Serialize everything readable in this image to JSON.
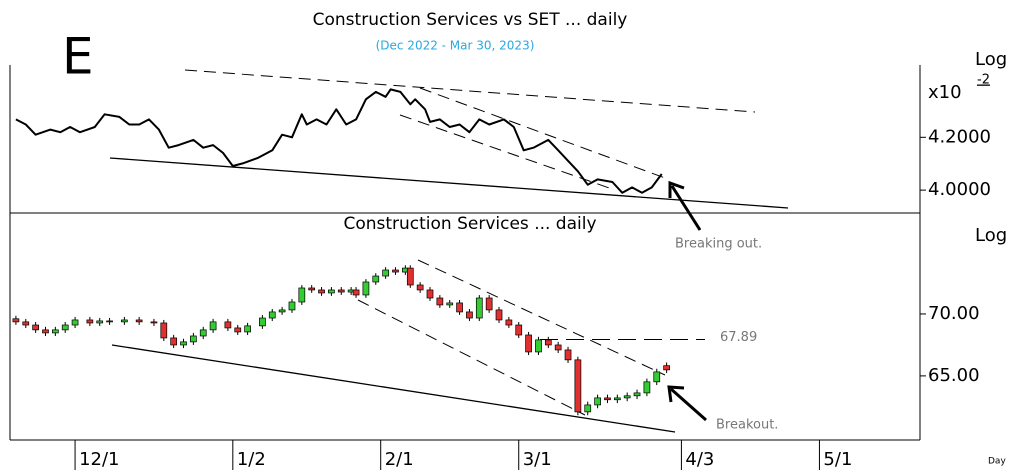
{
  "chart_data": [
    {
      "type": "line",
      "title": "Construction Services vs SET ... daily",
      "subtitle": "(Dec 2022 - Mar 30, 2023)",
      "panel_letter": "E",
      "scale_label": "Log",
      "axis_unit": "x10",
      "axis_exponent": "-2",
      "log_scale": true,
      "annotation": "Breaking out.",
      "color": "#000000",
      "xlim": [
        -13.2,
        171.4
      ],
      "ylim": [
        3.92,
        4.49
      ],
      "yticks": [
        {
          "value": 4.2,
          "label": "4.2000"
        },
        {
          "value": 4,
          "label": "4.0000"
        }
      ],
      "x": [
        -12,
        -10,
        -8,
        -5,
        -3,
        -1,
        1,
        4,
        6,
        9,
        11,
        13,
        15,
        17,
        19,
        21,
        24,
        26,
        28,
        30,
        32,
        34,
        37,
        40,
        42,
        44,
        46,
        47,
        49,
        51,
        53,
        55,
        57,
        59,
        61,
        63,
        64,
        66,
        68,
        69,
        71,
        72,
        74,
        76,
        78,
        80,
        82,
        84,
        87,
        89,
        91,
        93,
        96,
        98,
        100,
        102,
        104,
        106,
        109,
        111,
        113,
        115,
        117,
        119
      ],
      "values": [
        4.27,
        4.25,
        4.21,
        4.23,
        4.22,
        4.24,
        4.22,
        4.24,
        4.29,
        4.28,
        4.25,
        4.25,
        4.27,
        4.23,
        4.16,
        4.17,
        4.19,
        4.16,
        4.17,
        4.14,
        4.09,
        4.1,
        4.12,
        4.15,
        4.21,
        4.2,
        4.29,
        4.25,
        4.27,
        4.25,
        4.31,
        4.25,
        4.27,
        4.35,
        4.38,
        4.36,
        4.39,
        4.38,
        4.33,
        4.35,
        4.31,
        4.26,
        4.27,
        4.24,
        4.25,
        4.22,
        4.27,
        4.25,
        4.27,
        4.24,
        4.15,
        4.16,
        4.19,
        4.15,
        4.11,
        4.07,
        4.02,
        4.04,
        4.03,
        3.99,
        4.01,
        3.99,
        4.01,
        4.06
      ]
    },
    {
      "type": "candlestick",
      "title": "Construction Services ... daily",
      "scale_label": "Log",
      "log_scale": true,
      "annotation": "Breakout.",
      "resistance": 67.89,
      "up_color": "#33cc33",
      "down_color": "#e03030",
      "xlabel": "Day",
      "xlim": [
        -13.2,
        171.4
      ],
      "xticks": [
        {
          "value": 0,
          "label": "12/1"
        },
        {
          "value": 32,
          "label": "1/2"
        },
        {
          "value": 62,
          "label": "2/1"
        },
        {
          "value": 90,
          "label": "3/1"
        },
        {
          "value": 123,
          "label": "4/3"
        },
        {
          "value": 151,
          "label": "5/1"
        }
      ],
      "ylim": [
        60.2,
        78.8
      ],
      "yticks": [
        {
          "value": 70,
          "label": "70.00"
        },
        {
          "value": 65,
          "label": "65.00"
        }
      ],
      "x": [
        -12,
        -10,
        -8,
        -6,
        -4,
        -2,
        0,
        3,
        5,
        7,
        10,
        13,
        16,
        18,
        20,
        22,
        24,
        26,
        28,
        31,
        33,
        35,
        38,
        40,
        42,
        44,
        46,
        48,
        50,
        52,
        54,
        56,
        57,
        59,
        61,
        63,
        65,
        67,
        68,
        70,
        72,
        74,
        76,
        78,
        80,
        82,
        84,
        86,
        88,
        90,
        92,
        94,
        96,
        98,
        100,
        102,
        104,
        106,
        108,
        110,
        112,
        114,
        116,
        118,
        120
      ],
      "open": [
        69.6,
        69.34,
        69.08,
        68.68,
        68.43,
        68.68,
        69.08,
        69.5,
        69.25,
        69.42,
        69.34,
        69.5,
        69.34,
        69.25,
        68.02,
        67.45,
        67.7,
        68.18,
        68.68,
        69.34,
        68.84,
        68.51,
        69.01,
        69.66,
        70.17,
        70.34,
        71.01,
        72.21,
        72.04,
        71.78,
        72.04,
        71.86,
        72.04,
        71.61,
        72.73,
        73.25,
        73.78,
        73.6,
        73.95,
        72.47,
        72.04,
        71.35,
        70.76,
        70.93,
        70.17,
        69.66,
        71.35,
        70.34,
        69.5,
        69.08,
        68.26,
        66.89,
        67.86,
        67.45,
        67.05,
        66.26,
        62.26,
        62.78,
        63.31,
        63.17,
        63.31,
        63.47,
        63.69,
        64.54,
        65.8
      ],
      "high": [
        69.85,
        69.59,
        69.33,
        68.93,
        68.93,
        69.33,
        69.75,
        69.75,
        69.67,
        69.67,
        69.75,
        69.75,
        69.59,
        69.5,
        68.27,
        67.95,
        68.43,
        68.93,
        69.59,
        69.59,
        69.09,
        69.26,
        69.91,
        70.42,
        70.59,
        71.26,
        72.46,
        72.46,
        72.29,
        72.29,
        72.29,
        72.29,
        72.29,
        72.98,
        73.5,
        74.03,
        74.03,
        74.2,
        74.2,
        72.72,
        72.29,
        71.6,
        71.18,
        71.18,
        70.42,
        71.6,
        71.6,
        70.59,
        69.75,
        69.33,
        68.51,
        68.11,
        68.11,
        67.7,
        67.3,
        66.51,
        63.03,
        63.56,
        63.56,
        63.56,
        63.72,
        63.94,
        64.79,
        65.56,
        66.05
      ],
      "low": [
        69.09,
        68.83,
        68.43,
        68.18,
        68.18,
        68.43,
        68.83,
        69.0,
        69.0,
        69.09,
        69.09,
        69.09,
        69.0,
        67.77,
        67.2,
        67.2,
        67.45,
        67.93,
        68.43,
        68.59,
        68.26,
        68.26,
        68.76,
        69.41,
        69.92,
        70.09,
        70.76,
        71.79,
        71.53,
        71.53,
        71.61,
        71.61,
        71.36,
        71.36,
        72.48,
        73.0,
        73.35,
        73.35,
        72.22,
        71.79,
        71.1,
        70.51,
        70.51,
        69.92,
        69.41,
        69.41,
        70.09,
        69.25,
        68.83,
        68.01,
        66.64,
        66.64,
        67.2,
        66.8,
        66.01,
        62.01,
        62.01,
        62.53,
        62.92,
        62.92,
        63.06,
        63.22,
        63.44,
        64.29,
        65.22
      ],
      "close": [
        69.34,
        69.08,
        68.68,
        68.43,
        68.68,
        69.08,
        69.5,
        69.25,
        69.42,
        69.34,
        69.5,
        69.34,
        69.25,
        68.02,
        67.45,
        67.7,
        68.18,
        68.68,
        69.34,
        68.84,
        68.51,
        69.01,
        69.66,
        70.17,
        70.34,
        71.01,
        72.21,
        72.04,
        71.78,
        72.04,
        71.86,
        72.04,
        71.61,
        72.73,
        73.25,
        73.78,
        73.6,
        73.95,
        72.47,
        72.04,
        71.35,
        70.76,
        70.93,
        70.17,
        69.66,
        71.35,
        70.34,
        69.5,
        69.08,
        68.26,
        66.89,
        67.86,
        67.45,
        67.05,
        66.26,
        62.26,
        62.78,
        63.31,
        63.17,
        63.31,
        63.47,
        63.69,
        64.54,
        65.31,
        65.47
      ]
    }
  ]
}
